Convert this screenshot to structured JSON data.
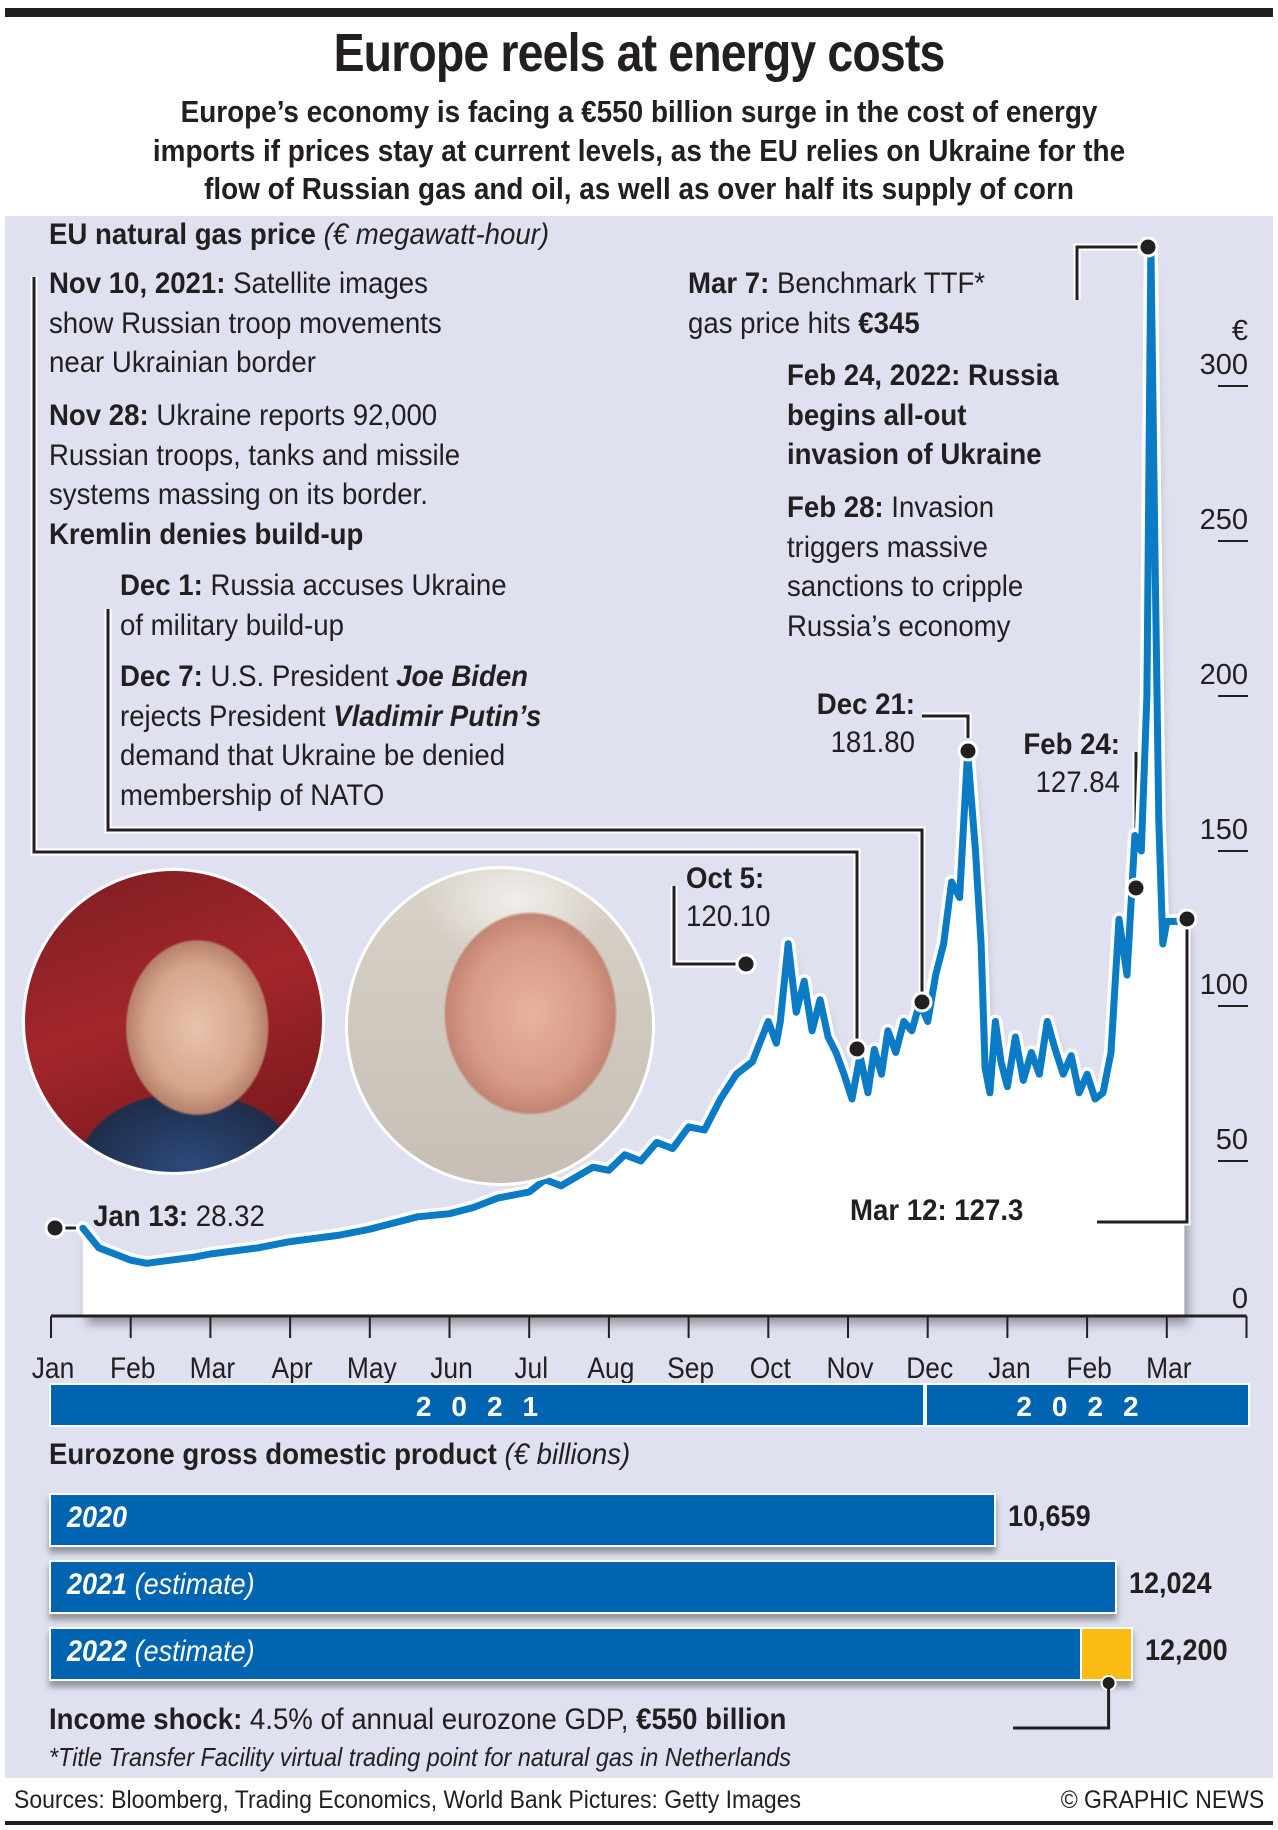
{
  "header": {
    "title": "Europe reels at energy costs",
    "subtitle_lines": [
      "Europe’s economy is facing a €550 billion surge in the cost of energy",
      "imports if prices stay at current levels, as the EU relies on Ukraine for the",
      "flow of Russian gas and oil, as well as over half its supply of corn"
    ]
  },
  "gas_section": {
    "title_bold": "EU natural gas price",
    "title_italic": "(€ megawatt-hour)",
    "notes": {
      "nov10_date": "Nov 10, 2021:",
      "nov10_text_1": "Satellite images",
      "nov10_text_2": "show Russian troop movements",
      "nov10_text_3": "near Ukrainian border",
      "nov28_date": "Nov 28:",
      "nov28_text_1": "Ukraine reports 92,000",
      "nov28_text_2": "Russian troops, tanks and missile",
      "nov28_text_3": "systems massing on its border.",
      "nov28_bold": "Kremlin denies build-up",
      "dec1_date": "Dec 1:",
      "dec1_text_1": "Russia accuses Ukraine",
      "dec1_text_2": "of military build-up",
      "dec7_date": "Dec 7:",
      "dec7_text_1": "U.S. President",
      "dec7_name_1": "Joe Biden",
      "dec7_text_2": "rejects President",
      "dec7_name_2": "Vladimir Putin’s",
      "dec7_text_3": "demand that Ukraine be denied",
      "dec7_text_4": "membership of NATO",
      "mar7_date": "Mar 7:",
      "mar7_text_1": "Benchmark TTF*",
      "mar7_text_2": "gas price hits",
      "mar7_value": "€345",
      "feb24_title_1": "Feb 24, 2022: Russia",
      "feb24_title_2": "begins all-out",
      "feb24_title_3": "invasion of Ukraine",
      "feb28_date": "Feb 28:",
      "feb28_text_1": "Invasion",
      "feb28_text_2": "triggers massive",
      "feb28_text_3": "sanctions to cripple",
      "feb28_text_4": "Russia’s economy"
    },
    "callouts": {
      "jan13_date": "Jan 13:",
      "jan13_value": "28.32",
      "oct5_date": "Oct 5:",
      "oct5_value": "120.10",
      "dec21_date": "Dec 21:",
      "dec21_value": "181.80",
      "feb24_date": "Feb 24:",
      "feb24_value": "127.84",
      "mar12_label": "Mar 12: 127.3"
    },
    "photos": [
      {
        "subject": "Vladimir Putin"
      },
      {
        "subject": "Joe Biden"
      }
    ],
    "colors": {
      "line": "#0a7bc4",
      "panel": "#dfe1f0",
      "accent_blue": "#0064b0",
      "highlight_yellow": "#fbbb12"
    }
  },
  "chart_data": [
    {
      "type": "area",
      "title": "EU natural gas price",
      "ylabel": "€ megawatt-hour",
      "y_unit_label": "€",
      "ylim": [
        0,
        345
      ],
      "yticks": [
        0,
        50,
        100,
        150,
        200,
        250,
        300
      ],
      "xlabel": "",
      "x_tick_labels": [
        "Jan",
        "Feb",
        "Mar",
        "Apr",
        "May",
        "Jun",
        "Jul",
        "Aug",
        "Sep",
        "Oct",
        "Nov",
        "Dec",
        "Jan",
        "Feb",
        "Mar"
      ],
      "year_bands": [
        {
          "label": "2021",
          "months": 11
        },
        {
          "label": "2022",
          "months": 4
        }
      ],
      "grid": false,
      "series": [
        {
          "name": "TTF gas price",
          "x_month_index": [
            0.4,
            0.6,
            0.8,
            1.0,
            1.2,
            1.5,
            1.8,
            2.0,
            2.3,
            2.6,
            3.0,
            3.3,
            3.6,
            4.0,
            4.3,
            4.6,
            5.0,
            5.3,
            5.6,
            6.0,
            6.2,
            6.4,
            6.6,
            6.8,
            7.0,
            7.2,
            7.4,
            7.6,
            7.8,
            8.0,
            8.2,
            8.4,
            8.6,
            8.8,
            9.0,
            9.1,
            9.15,
            9.25,
            9.35,
            9.45,
            9.55,
            9.65,
            9.75,
            9.85,
            9.95,
            10.05,
            10.15,
            10.25,
            10.33,
            10.42,
            10.5,
            10.6,
            10.7,
            10.8,
            10.9,
            11.0,
            11.1,
            11.2,
            11.3,
            11.4,
            11.5,
            11.6,
            11.67,
            11.72,
            11.78,
            11.85,
            11.92,
            12.0,
            12.1,
            12.2,
            12.3,
            12.4,
            12.5,
            12.6,
            12.7,
            12.8,
            12.9,
            13.0,
            13.1,
            13.2,
            13.3,
            13.4,
            13.5,
            13.6,
            13.68,
            13.75,
            13.8,
            13.85,
            13.9,
            13.95,
            14.0,
            14.05,
            14.1,
            14.15,
            14.22
          ],
          "values": [
            28.32,
            22,
            20,
            18,
            17,
            18,
            19,
            20,
            21,
            22,
            24,
            25,
            26,
            28,
            30,
            32,
            33,
            35,
            38,
            40,
            44,
            42,
            45,
            48,
            47,
            52,
            50,
            56,
            54,
            61,
            60,
            70,
            78,
            82,
            95,
            88,
            95,
            120.1,
            98,
            108,
            92,
            102,
            90,
            85,
            78,
            70,
            84,
            72,
            86,
            78,
            92,
            85,
            95,
            92,
            101,
            95,
            110,
            120,
            140,
            135,
            181.8,
            150,
            120,
            80,
            72,
            95,
            82,
            74,
            90,
            76,
            85,
            78,
            95,
            86,
            78,
            84,
            72,
            78,
            70,
            72,
            85,
            128,
            110,
            155,
            150,
            200,
            345,
            250,
            160,
            120,
            127.3,
            127.3,
            127.3,
            127.3,
            127.3
          ]
        }
      ],
      "annotations": [
        {
          "label": "Jan 13: 28.32",
          "date": "2021-01-13",
          "value": 28.32
        },
        {
          "label": "Oct 5: 120.10",
          "date": "2021-10-05",
          "value": 120.1
        },
        {
          "label": "Nov 10, 2021",
          "date": "2021-11-10",
          "value": 86
        },
        {
          "label": "Nov 28",
          "date": "2021-11-28",
          "value": 101
        },
        {
          "label": "Dec 21: 181.80",
          "date": "2021-12-21",
          "value": 181.8
        },
        {
          "label": "Feb 24: 127.84",
          "date": "2022-02-24",
          "value": 127.84
        },
        {
          "label": "Mar 7: €345",
          "date": "2022-03-07",
          "value": 345
        },
        {
          "label": "Mar 12: 127.3",
          "date": "2022-03-12",
          "value": 127.3
        }
      ]
    },
    {
      "type": "bar",
      "orientation": "horizontal",
      "title": "Eurozone gross domestic product",
      "ylabel": "€ billions",
      "categories": [
        "2020",
        "2021 (estimate)",
        "2022 (estimate)"
      ],
      "values": [
        10659,
        12024,
        12200
      ],
      "value_labels": [
        "10,659",
        "12,024",
        "12,200"
      ],
      "highlight": {
        "category": "2022 (estimate)",
        "label": "Income shock",
        "value": 550,
        "unit": "€ billion"
      }
    }
  ],
  "gdp_section": {
    "title_bold": "Eurozone gross domestic product",
    "title_italic": "(€ billions)",
    "bars": [
      {
        "year": "2020",
        "suffix": "",
        "value_label": "10,659"
      },
      {
        "year": "2021",
        "suffix": "(estimate)",
        "value_label": "12,024"
      },
      {
        "year": "2022",
        "suffix": "(estimate)",
        "value_label": "12,200"
      }
    ],
    "income_shock_bold": "Income shock:",
    "income_shock_text": "4.5% of annual eurozone GDP,",
    "income_shock_value": "€550 billion",
    "footnote": "*Title Transfer Facility virtual trading point for natural gas in Netherlands"
  },
  "footer": {
    "sources": "Sources: Bloomberg, Trading Economics, World Bank   Pictures: Getty Images",
    "copyright": "© GRAPHIC NEWS"
  }
}
